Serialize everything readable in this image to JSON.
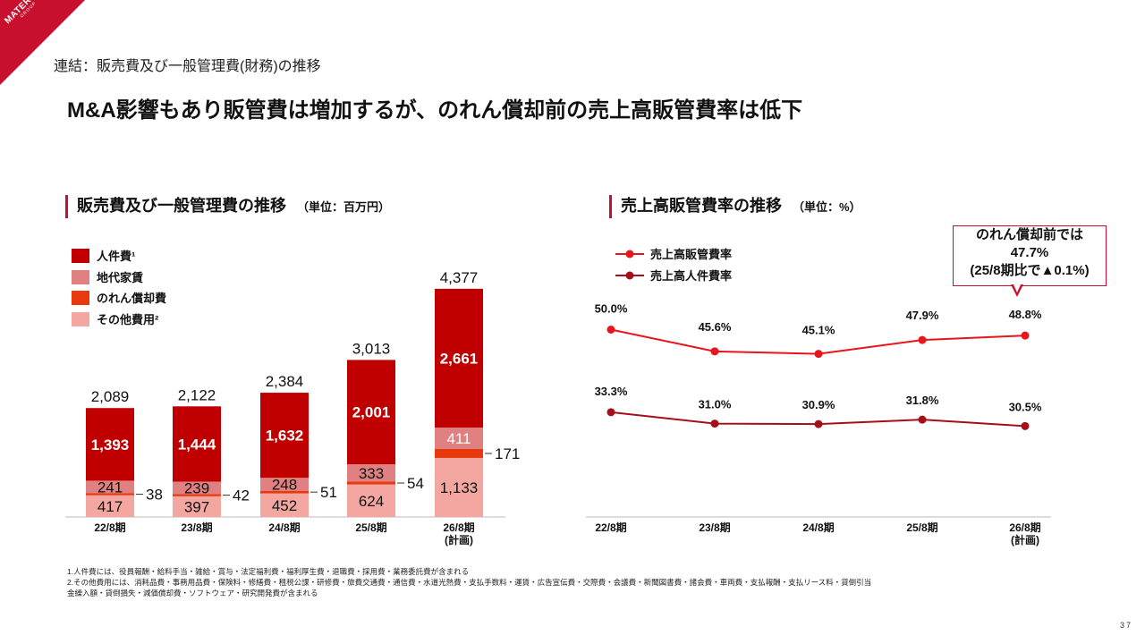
{
  "logo": {
    "brand": "MATERIAL",
    "sub": "GROUP"
  },
  "breadcrumb": "連結：販売費及び一般管理費(財務)の推移",
  "headline": "M&A影響もあり販管費は増加するが、のれん償却前の売上高販管費率は低下",
  "left_section": {
    "title": "販売費及び一般管理費の推移",
    "unit": "（単位：百万円）"
  },
  "right_section": {
    "title": "売上高販管費率の推移",
    "unit": "（単位：%）"
  },
  "colors": {
    "personnel": "#c00000",
    "rent": "#e08080",
    "goodwill": "#e8380d",
    "other": "#f4a7a0",
    "sga_ratio": "#e8151b",
    "personnel_ratio": "#a50f1a",
    "accent": "#c8102e"
  },
  "callout": {
    "line1": "のれん償却前では",
    "line2": "47.7%",
    "line3": "(25/8期比で▲0.1%)"
  },
  "chart_data": [
    {
      "type": "bar",
      "stacked": true,
      "categories": [
        "22/8期",
        "23/8期",
        "24/8期",
        "25/8期",
        "26/8期\n(計画)"
      ],
      "category_lines": [
        [
          "22/8期"
        ],
        [
          "23/8期"
        ],
        [
          "24/8期"
        ],
        [
          "25/8期"
        ],
        [
          "26/8期",
          "(計画)"
        ]
      ],
      "series": [
        {
          "name": "その他費用",
          "legend": "その他費用²",
          "values": [
            417,
            397,
            452,
            624,
            1133
          ],
          "labels": [
            "417",
            "397",
            "452",
            "624",
            "1,133"
          ]
        },
        {
          "name": "のれん償却費",
          "legend": "のれん償却費",
          "values": [
            38,
            42,
            51,
            54,
            171
          ],
          "labels": [
            "38",
            "42",
            "51",
            "54",
            "171"
          ]
        },
        {
          "name": "地代家賃",
          "legend": "地代家賃",
          "values": [
            241,
            239,
            248,
            333,
            411
          ],
          "labels": [
            "241",
            "239",
            "248",
            "333",
            "411"
          ]
        },
        {
          "name": "人件費",
          "legend": "人件費¹",
          "values": [
            1393,
            1444,
            1632,
            2001,
            2661
          ],
          "labels": [
            "1,393",
            "1,444",
            "1,632",
            "2,001",
            "2,661"
          ]
        }
      ],
      "totals": [
        2089,
        2122,
        2384,
        3013,
        4377
      ],
      "total_labels": [
        "2,089",
        "2,122",
        "2,384",
        "3,013",
        "4,377"
      ],
      "ylim": [
        0,
        4500
      ],
      "legend_position": "top-left"
    },
    {
      "type": "line",
      "categories": [
        "22/8期",
        "23/8期",
        "24/8期",
        "25/8期",
        "26/8期\n(計画)"
      ],
      "category_lines": [
        [
          "22/8期"
        ],
        [
          "23/8期"
        ],
        [
          "24/8期"
        ],
        [
          "25/8期"
        ],
        [
          "26/8期",
          "(計画)"
        ]
      ],
      "series": [
        {
          "name": "売上高販管費率",
          "values": [
            50.0,
            45.6,
            45.1,
            47.9,
            48.8
          ],
          "labels": [
            "50.0%",
            "45.6%",
            "45.1%",
            "47.9%",
            "48.8%"
          ]
        },
        {
          "name": "売上高人件費率",
          "values": [
            33.3,
            31.0,
            30.9,
            31.8,
            30.5
          ],
          "labels": [
            "33.3%",
            "31.0%",
            "30.9%",
            "31.8%",
            "30.5%"
          ]
        }
      ],
      "ylim": [
        20,
        60
      ],
      "legend_position": "top-left"
    }
  ],
  "footnotes": [
    "1.人件費には、役員報酬・給料手当・雑給・賞与・法定福利費・福利厚生費・退職費・採用費・業務委託費が含まれる",
    "2.その他費用には、消耗品費・事務用品費・保険料・修繕費・租税公課・研修費・旅費交通費・通信費・水道光熱費・支払手数料・運賃・広告宣伝費・交際費・会議費・新聞図書費・諸会費・車両費・支払報酬・支払リース料・貸倒引当",
    "金繰入額・貸倒損失・減価償却費・ソフトウェア・研究開発費が含まれる"
  ],
  "page_number": "37"
}
